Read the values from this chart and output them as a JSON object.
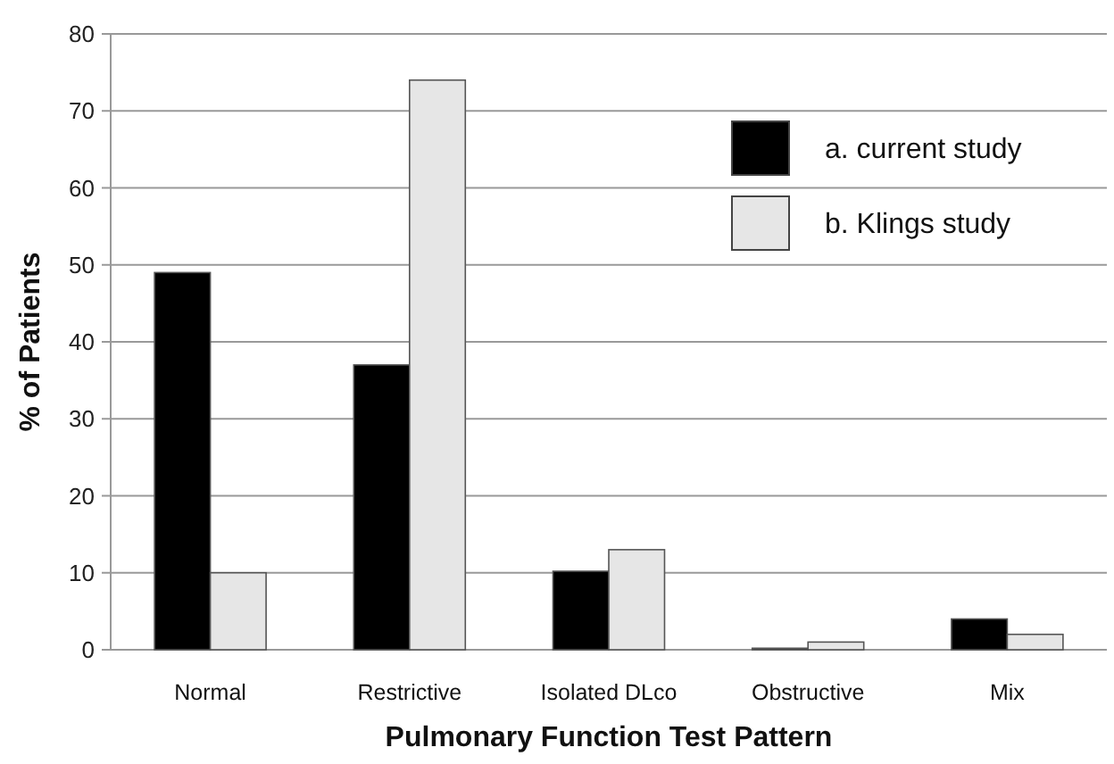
{
  "chart_data": {
    "type": "bar",
    "xlabel": "Pulmonary Function Test Pattern",
    "ylabel": "% of Patients",
    "categories": [
      "Normal",
      "Restrictive",
      "Isolated DLco",
      "Obstructive",
      "Mix"
    ],
    "series": [
      {
        "name": "a. current study",
        "color": "#000000",
        "values": [
          49,
          37,
          10.2,
          0.2,
          4
        ]
      },
      {
        "name": "b. Klings study",
        "color": "#e6e6e6",
        "values": [
          10,
          74,
          13,
          1,
          2
        ]
      }
    ],
    "ylim": [
      0,
      80
    ],
    "yticks": [
      0,
      10,
      20,
      30,
      40,
      50,
      60,
      70,
      80
    ],
    "grid": "y",
    "legend": "top right"
  }
}
